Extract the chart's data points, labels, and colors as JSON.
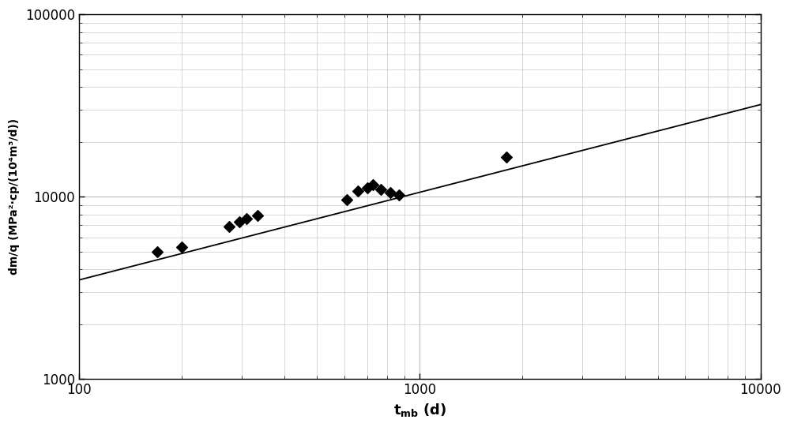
{
  "scatter_x": [
    170,
    200,
    275,
    295,
    310,
    335,
    610,
    660,
    700,
    730,
    770,
    820,
    870,
    1800
  ],
  "scatter_y": [
    5000,
    5300,
    6900,
    7300,
    7600,
    7900,
    9600,
    10800,
    11200,
    11600,
    11000,
    10500,
    10200,
    16500
  ],
  "line_x": [
    100,
    10000
  ],
  "line_y": [
    3500,
    32000
  ],
  "xlim": [
    100,
    10000
  ],
  "ylim": [
    1000,
    100000
  ],
  "ylabel_top": "dm/q",
  "ylabel_bottom": "(MPa²·cp/(10⁴m³/d))",
  "background_color": "#ffffff",
  "grid_color": "#bbbbbb",
  "line_color": "#000000",
  "marker_color": "#000000",
  "marker_size": 7,
  "tick_fontsize": 12,
  "label_fontsize": 13
}
